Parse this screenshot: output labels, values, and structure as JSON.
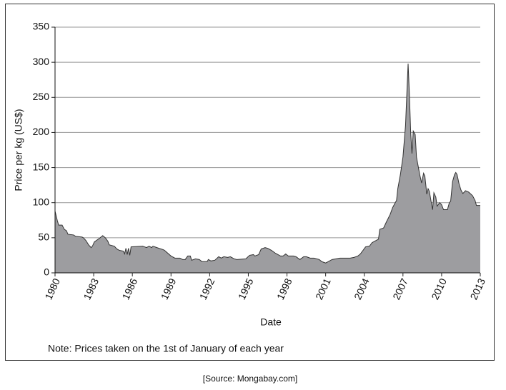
{
  "chart_data": {
    "type": "area",
    "ylabel": "Price per kg (US$)",
    "xlabel": "Date",
    "note": "Note: Prices taken on the 1st of January of each year",
    "source": "[Source: Mongabay.com]",
    "color": "#9d9da0",
    "line_color": "#333333",
    "grid": true,
    "xlim": [
      1980,
      2013
    ],
    "xticks": [
      1980,
      1983,
      1986,
      1989,
      1992,
      1995,
      1998,
      2001,
      2004,
      2007,
      2010,
      2013
    ],
    "ylim": [
      0,
      350
    ],
    "yticks": [
      0,
      50,
      100,
      150,
      200,
      250,
      300,
      350
    ],
    "x": [
      1980.0,
      1980.17,
      1980.28,
      1980.55,
      1980.72,
      1980.89,
      1981.0,
      1981.44,
      1981.6,
      1982.1,
      1982.2,
      1982.4,
      1982.6,
      1982.8,
      1982.9,
      1983.05,
      1983.5,
      1983.7,
      1983.9,
      1984.1,
      1984.2,
      1984.6,
      1984.8,
      1985.0,
      1985.3,
      1985.4,
      1985.5,
      1985.6,
      1985.7,
      1985.8,
      1985.9,
      1986.8,
      1987.1,
      1987.3,
      1987.5,
      1987.6,
      1987.9,
      1988.4,
      1988.5,
      1989.0,
      1989.3,
      1989.7,
      1989.9,
      1990.1,
      1990.3,
      1990.5,
      1990.6,
      1990.9,
      1991.2,
      1991.4,
      1991.8,
      1991.9,
      1992.1,
      1992.4,
      1992.7,
      1992.9,
      1993.1,
      1993.4,
      1993.6,
      1993.9,
      1994.1,
      1994.8,
      1995.1,
      1995.4,
      1995.5,
      1995.8,
      1996.0,
      1996.3,
      1996.5,
      1996.8,
      1997.1,
      1997.5,
      1997.7,
      1997.9,
      1998.1,
      1998.5,
      1998.7,
      1999.0,
      1999.3,
      1999.5,
      1999.8,
      2000.1,
      2000.5,
      2000.7,
      2001.0,
      2001.2,
      2001.5,
      2001.8,
      2002.1,
      2002.9,
      2003.2,
      2003.5,
      2003.7,
      2004.1,
      2004.4,
      2004.6,
      2004.8,
      2005.1,
      2005.2,
      2005.5,
      2005.7,
      2006.0,
      2006.2,
      2006.4,
      2006.5,
      2006.6,
      2006.8,
      2007.0,
      2007.2,
      2007.3,
      2007.4,
      2007.5,
      2007.6,
      2007.7,
      2007.8,
      2007.95,
      2008.05,
      2008.3,
      2008.45,
      2008.6,
      2008.7,
      2008.85,
      2008.95,
      2009.05,
      2009.2,
      2009.3,
      2009.4,
      2009.55,
      2009.65,
      2009.85,
      2010.0,
      2010.15,
      2010.45,
      2010.6,
      2010.7,
      2010.85,
      2011.0,
      2011.1,
      2011.2,
      2011.35,
      2011.5,
      2011.65,
      2011.85,
      2012.1,
      2012.4,
      2012.6,
      2012.7,
      2013.0
    ],
    "values": [
      88,
      75,
      68,
      68,
      62,
      60,
      55,
      54,
      52,
      51,
      50,
      46,
      40,
      36,
      38,
      44,
      50,
      53,
      50,
      45,
      40,
      38,
      34,
      32,
      31,
      27,
      35,
      26,
      35,
      25,
      37,
      38,
      36,
      38,
      36,
      38,
      36,
      33,
      32,
      24,
      21,
      21,
      19,
      19,
      24,
      24,
      18,
      20,
      19,
      16,
      16,
      19,
      17,
      18,
      23,
      21,
      23,
      22,
      23,
      20,
      19,
      20,
      25,
      26,
      24,
      26,
      34,
      36,
      35,
      32,
      28,
      24,
      24,
      27,
      24,
      24,
      23,
      19,
      23,
      23,
      21,
      21,
      19,
      16,
      14,
      16,
      19,
      20,
      21,
      21,
      22,
      24,
      27,
      37,
      38,
      43,
      45,
      48,
      62,
      64,
      72,
      83,
      93,
      100,
      103,
      120,
      140,
      165,
      210,
      255,
      298,
      255,
      200,
      170,
      202,
      197,
      165,
      140,
      128,
      142,
      138,
      112,
      120,
      116,
      100,
      90,
      114,
      108,
      95,
      100,
      97,
      90,
      90,
      100,
      102,
      130,
      140,
      143,
      140,
      127,
      118,
      113,
      117,
      115,
      110,
      103,
      96,
      96
    ]
  }
}
